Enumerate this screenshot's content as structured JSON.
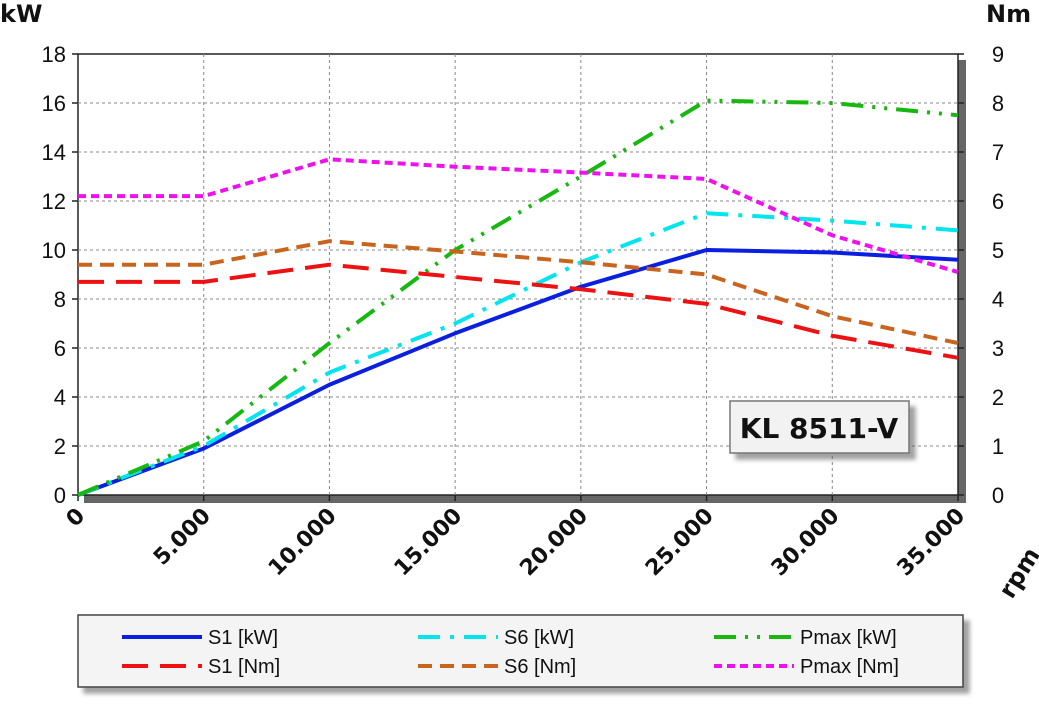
{
  "chart_data": {
    "type": "line",
    "x": [
      0,
      5000,
      10000,
      15000,
      20000,
      25000,
      30000,
      35000
    ],
    "x_tick_labels": [
      "0",
      "5.000",
      "10.000",
      "15.000",
      "20.000",
      "25.000",
      "30.000",
      "35.000"
    ],
    "xlabel": "rpm",
    "xlim": [
      0,
      35000
    ],
    "ylabel_left": "kW",
    "ylim_left": [
      0,
      18
    ],
    "y_left_ticks": [
      0,
      2,
      4,
      6,
      8,
      10,
      12,
      14,
      16,
      18
    ],
    "ylabel_right": "Nm",
    "ylim_right": [
      0,
      9
    ],
    "y_right_ticks": [
      0,
      1,
      2,
      3,
      4,
      5,
      6,
      7,
      8,
      9
    ],
    "grid": true,
    "legend_position": "bottom",
    "annotation": "KL 8511-V",
    "series": [
      {
        "name": "S1 [kW]",
        "axis": "left",
        "color": "#0a1fe0",
        "dash": "solid",
        "values": [
          0,
          1.9,
          4.5,
          6.6,
          8.5,
          10.0,
          9.9,
          9.6
        ]
      },
      {
        "name": "S6 [kW]",
        "axis": "left",
        "color": "#00e5ee",
        "dash": "dashdot",
        "values": [
          0,
          2.0,
          5.0,
          7.0,
          9.5,
          11.5,
          11.2,
          10.8
        ]
      },
      {
        "name": "Pmax [kW]",
        "axis": "left",
        "color": "#17b80f",
        "dash": "dashdotdot",
        "values": [
          0,
          2.2,
          6.2,
          10.0,
          13.0,
          16.1,
          16.0,
          15.5
        ]
      },
      {
        "name": "S1 [Nm]",
        "axis": "right",
        "color": "#ee1111",
        "dash": "longdash",
        "values": [
          4.35,
          4.35,
          4.7,
          4.45,
          4.2,
          3.9,
          3.25,
          2.8
        ]
      },
      {
        "name": "S6 [Nm]",
        "axis": "right",
        "color": "#c8641e",
        "dash": "shortdash",
        "values": [
          4.7,
          4.7,
          5.18,
          4.97,
          4.75,
          4.5,
          3.65,
          3.1
        ]
      },
      {
        "name": "Pmax [Nm]",
        "axis": "right",
        "color": "#ee11ee",
        "dash": "dotted",
        "values": [
          6.1,
          6.1,
          6.85,
          6.7,
          6.58,
          6.45,
          5.3,
          4.55
        ]
      }
    ]
  }
}
